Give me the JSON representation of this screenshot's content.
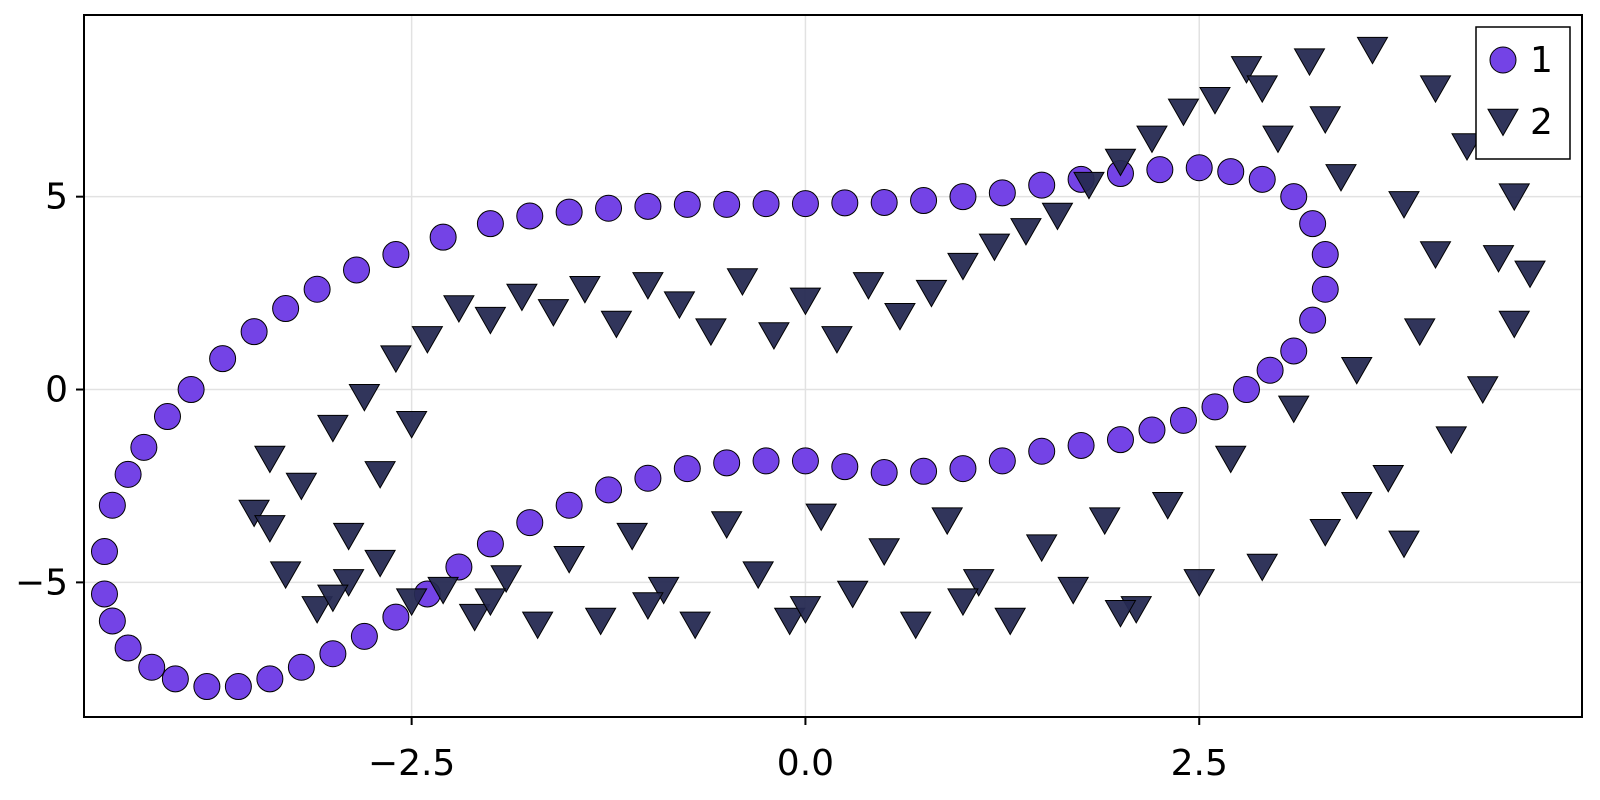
{
  "chart_data": {
    "type": "scatter",
    "xlim": [
      -4.58,
      4.93
    ],
    "ylim": [
      -8.49,
      9.71
    ],
    "xticks": [
      {
        "value": -2.5,
        "label": "−2.5"
      },
      {
        "value": 0,
        "label": "0.0"
      },
      2.5
    ],
    "yticks": [
      {
        "value": -5,
        "label": "−5"
      },
      0,
      5
    ],
    "grid": true,
    "legend": "top-right",
    "series": [
      {
        "name": "1",
        "color": "#7443e6",
        "marker": "circle",
        "x": [
          -4.45,
          -4.4,
          -4.3,
          -4.2,
          -4.05,
          -3.9,
          -3.7,
          -3.5,
          -3.3,
          -3.1,
          -2.85,
          -2.6,
          -2.3,
          -2.0,
          -1.75,
          -1.5,
          -1.25,
          -1.0,
          -0.75,
          -0.5,
          -0.25,
          0.0,
          0.25,
          0.5,
          0.75,
          1.0,
          1.25,
          1.5,
          1.75,
          2.0,
          2.25,
          2.5,
          2.7,
          2.9,
          3.1,
          3.22,
          3.3,
          3.3,
          3.22,
          3.1,
          2.95,
          2.8,
          2.6,
          2.4,
          2.2,
          2.0,
          1.75,
          1.5,
          1.25,
          1.0,
          0.75,
          0.5,
          0.25,
          0.0,
          -0.25,
          -0.5,
          -0.75,
          -1.0,
          -1.25,
          -1.5,
          -1.75,
          -2.0,
          -2.2,
          -2.4,
          -2.6,
          -2.8,
          -3.0,
          -3.2,
          -3.4,
          -3.6,
          -3.8,
          -4.0,
          -4.15,
          -4.3,
          -4.4,
          -4.45
        ],
        "values": [
          -4.2,
          -3.0,
          -2.2,
          -1.5,
          -0.7,
          0.0,
          0.8,
          1.5,
          2.1,
          2.6,
          3.1,
          3.5,
          3.95,
          4.3,
          4.5,
          4.6,
          4.7,
          4.75,
          4.8,
          4.8,
          4.82,
          4.82,
          4.84,
          4.85,
          4.9,
          5.0,
          5.1,
          5.3,
          5.45,
          5.6,
          5.7,
          5.75,
          5.65,
          5.45,
          5.0,
          4.3,
          3.5,
          2.6,
          1.8,
          1.0,
          0.5,
          0.0,
          -0.45,
          -0.8,
          -1.05,
          -1.3,
          -1.45,
          -1.6,
          -1.85,
          -2.05,
          -2.12,
          -2.15,
          -2.0,
          -1.85,
          -1.85,
          -1.9,
          -2.05,
          -2.3,
          -2.6,
          -3.0,
          -3.45,
          -4.0,
          -4.6,
          -5.3,
          -5.9,
          -6.4,
          -6.85,
          -7.2,
          -7.5,
          -7.7,
          -7.7,
          -7.5,
          -7.2,
          -6.7,
          -6.0,
          -5.3
        ]
      },
      {
        "name": "2",
        "color": "#262a52",
        "marker": "triangle-down",
        "x": [
          -3.5,
          -3.4,
          -3.3,
          -3.2,
          -3.1,
          -3.0,
          -2.9,
          -2.8,
          -2.7,
          -2.6,
          -2.5,
          -2.4,
          -2.3,
          -2.2,
          -2.1,
          -2.0,
          -1.9,
          -1.8,
          -1.7,
          -1.6,
          -1.5,
          -1.4,
          -1.3,
          -1.2,
          -1.1,
          -1.0,
          -0.9,
          -0.8,
          -0.7,
          -0.6,
          -0.5,
          -0.4,
          -0.3,
          -0.2,
          -0.1,
          0.0,
          0.1,
          0.2,
          0.3,
          0.4,
          0.5,
          0.6,
          0.7,
          0.8,
          0.9,
          1.0,
          1.1,
          1.2,
          1.3,
          1.4,
          1.5,
          1.6,
          1.7,
          1.8,
          1.9,
          2.0,
          2.1,
          2.2,
          2.3,
          2.4,
          2.5,
          2.6,
          2.7,
          2.8,
          2.9,
          3.0,
          3.1,
          3.2,
          3.3,
          3.4,
          3.5,
          3.6,
          3.7,
          3.8,
          3.9,
          4.0,
          4.1,
          4.2,
          4.3,
          4.4,
          4.5,
          4.5,
          3.8,
          3.5,
          4.0,
          4.6,
          3.3,
          2.9,
          2.0,
          -2.9,
          -3.4,
          -2.0,
          -1.0,
          0.0,
          1.0,
          -2.5,
          -2.7,
          -3.0
        ],
        "values": [
          -3.2,
          -1.8,
          -4.8,
          -2.5,
          -5.7,
          -1.0,
          -3.8,
          -0.2,
          -4.5,
          0.8,
          -5.5,
          1.3,
          -5.2,
          2.1,
          -5.9,
          1.8,
          -4.9,
          2.4,
          -6.1,
          2.0,
          -4.4,
          2.6,
          -6.0,
          1.7,
          -3.8,
          2.7,
          -5.2,
          2.2,
          -6.1,
          1.5,
          -3.5,
          2.8,
          -4.8,
          1.4,
          -6.0,
          2.3,
          -3.3,
          1.3,
          -5.3,
          2.7,
          -4.2,
          1.9,
          -6.1,
          2.5,
          -3.4,
          3.2,
          -5.0,
          3.7,
          -6.0,
          4.1,
          -4.1,
          4.5,
          -5.2,
          5.3,
          -3.4,
          5.9,
          -5.7,
          6.5,
          -3.0,
          7.2,
          -5.0,
          7.5,
          -1.8,
          8.3,
          -4.6,
          6.5,
          -0.5,
          8.5,
          -3.7,
          5.5,
          0.5,
          8.8,
          -2.3,
          4.8,
          1.5,
          7.8,
          -1.3,
          6.3,
          0.0,
          3.4,
          5.0,
          1.7,
          -4.0,
          -3.0,
          3.5,
          3.0,
          7.0,
          7.8,
          -5.8,
          -5.0,
          -3.6,
          -5.5,
          -5.6,
          -5.7,
          -5.5,
          -0.9,
          -2.2,
          -5.4
        ]
      }
    ]
  }
}
